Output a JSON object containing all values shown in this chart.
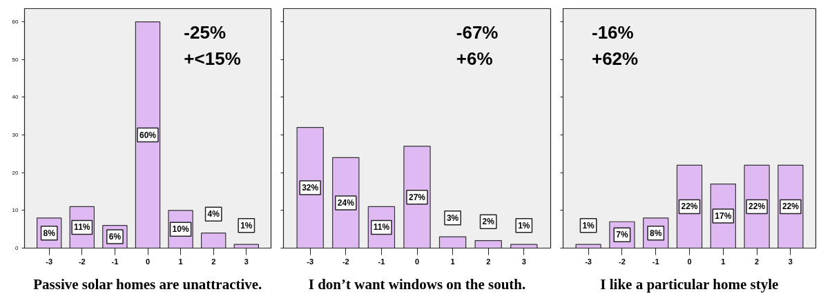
{
  "chart_data": [
    {
      "type": "bar",
      "xlabel": "Passive solar homes are unattractive.",
      "categories": [
        "-3",
        "-2",
        "-1",
        "0",
        "1",
        "2",
        "3"
      ],
      "values": [
        8,
        11,
        6,
        60,
        10,
        4,
        1
      ],
      "value_labels": [
        "8%",
        "11%",
        "6%",
        "60%",
        "10%",
        "4%",
        "1%"
      ],
      "color": "#dfb9f2",
      "ylim": [
        0,
        63.5
      ],
      "yticks": [
        0,
        10,
        20,
        30,
        40,
        50,
        60
      ],
      "annotations": [
        "-25%",
        "+<15%"
      ],
      "grid": false
    },
    {
      "type": "bar",
      "xlabel": "I don’t want windows on the south.",
      "categories": [
        "-3",
        "-2",
        "-1",
        "0",
        "1",
        "2",
        "3"
      ],
      "values": [
        32,
        24,
        11,
        27,
        3,
        2,
        1
      ],
      "value_labels": [
        "32%",
        "24%",
        "11%",
        "27%",
        "3%",
        "2%",
        "1%"
      ],
      "color": "#dfb9f2",
      "ylim": [
        0,
        63.5
      ],
      "yticks": [
        0,
        10,
        20,
        30,
        40,
        50,
        60
      ],
      "tick_labels": "x",
      "annotations": [
        "-67%",
        "+6%"
      ],
      "grid": false
    },
    {
      "type": "bar",
      "xlabel": "I like a particular home style",
      "categories": [
        "-3",
        "-2",
        "-1",
        "0",
        "1",
        "2",
        "3"
      ],
      "values": [
        1,
        7,
        8,
        22,
        17,
        22,
        22
      ],
      "value_labels": [
        "1%",
        "7%",
        "8%",
        "22%",
        "17%",
        "22%",
        "22%"
      ],
      "color": "#dfb9f2",
      "ylim": [
        0,
        63.5
      ],
      "yticks": [
        0,
        10,
        20,
        30,
        40,
        50,
        60
      ],
      "tick_labels": "x",
      "annotations": [
        "-16%",
        "+62%"
      ],
      "grid": false
    }
  ]
}
